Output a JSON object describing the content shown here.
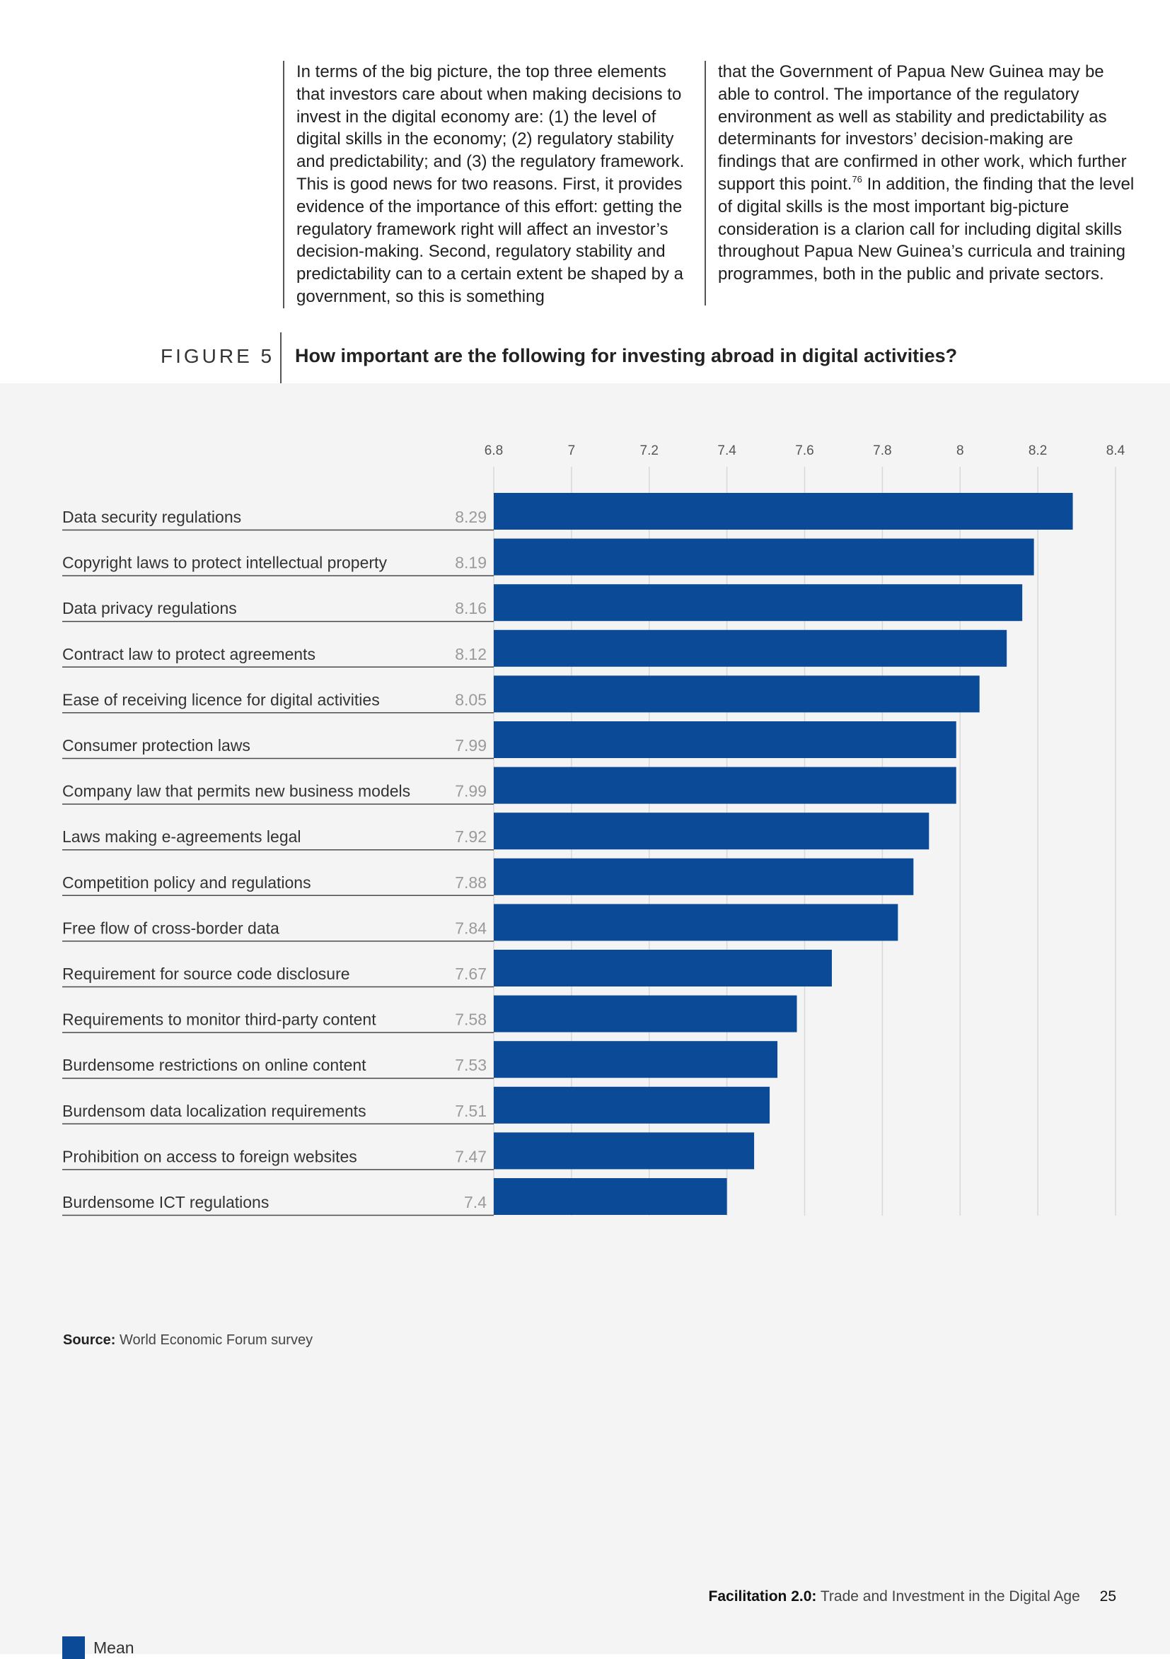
{
  "body_text": {
    "col1": "In terms of the big picture, the top three elements that investors care about when making decisions to invest in the digital economy are: (1) the level of digital skills in the economy; (2) regulatory stability and predictability; and (3) the regulatory framework. This is good news for two reasons. First, it provides evidence of the importance of this effort: getting the regulatory framework right will affect an investor’s decision-making. Second, regulatory stability and predictability can to a certain extent be shaped by a government, so this is something",
    "col2_part1": "that the Government of Papua New Guinea may be able to control. The importance of the regulatory environment as well as stability and predictability as determinants for investors’ decision-making are findings that are confirmed in other work, which further support this point.",
    "col2_footnote": "76",
    "col2_part2": " In addition, the finding that the level of digital skills is the most important big-picture consideration is a clarion call for including digital skills throughout Papua New Guinea’s curricula and training programmes, both in the public and private sectors."
  },
  "figure": {
    "label": "FIGURE 5",
    "title": "How important are the following for investing abroad in digital activities?"
  },
  "chart_data": {
    "type": "bar",
    "orientation": "horizontal",
    "title": "How important are the following for investing abroad in digital activities?",
    "categories": [
      "Data security regulations",
      "Copyright laws to protect intellectual property",
      "Data privacy regulations",
      "Contract law to protect agreements",
      "Ease of receiving licence for digital activities",
      "Consumer protection laws",
      "Company law that permits new business models",
      "Laws making e-agreements legal",
      "Competition policy and regulations",
      "Free flow of cross-border data",
      "Requirement for source code disclosure",
      "Requirements to monitor third-party content",
      "Burdensome restrictions on online content",
      "Burdensom data localization requirements",
      "Prohibition on access to foreign websites",
      "Burdensome ICT regulations"
    ],
    "series": [
      {
        "name": "Mean",
        "values": [
          8.29,
          8.19,
          8.16,
          8.12,
          8.05,
          7.99,
          7.99,
          7.92,
          7.88,
          7.84,
          7.67,
          7.58,
          7.53,
          7.51,
          7.47,
          7.4
        ],
        "labels": [
          "8.29",
          "8.19",
          "8.16",
          "8.12",
          "8.05",
          "7.99",
          "7.99",
          "7.92",
          "7.88",
          "7.84",
          "7.67",
          "7.58",
          "7.53",
          "7.51",
          "7.47",
          "7.4"
        ]
      }
    ],
    "xlim": [
      6.8,
      8.4
    ],
    "xticks": [
      6.8,
      7,
      7.2,
      7.4,
      7.6,
      7.8,
      8,
      8.2,
      8.4
    ],
    "xtick_labels": [
      "6.8",
      "7",
      "7.2",
      "7.4",
      "7.6",
      "7.8",
      "8",
      "8.2",
      "8.4"
    ],
    "grid": true,
    "legend_position": "bottom-left",
    "xlabel": "",
    "ylabel": ""
  },
  "legend": {
    "label": "Mean"
  },
  "colors": {
    "bar": "#0a4a96",
    "grid": "#d8d8d8",
    "panel_bg": "#f4f4f4",
    "value_label": "#9a9a9a"
  },
  "source": {
    "label": "Source:",
    "text": "World Economic Forum survey"
  },
  "footer": {
    "bold": "Facilitation 2.0:",
    "text": "Trade and Investment in the Digital Age",
    "page_number": "25"
  }
}
